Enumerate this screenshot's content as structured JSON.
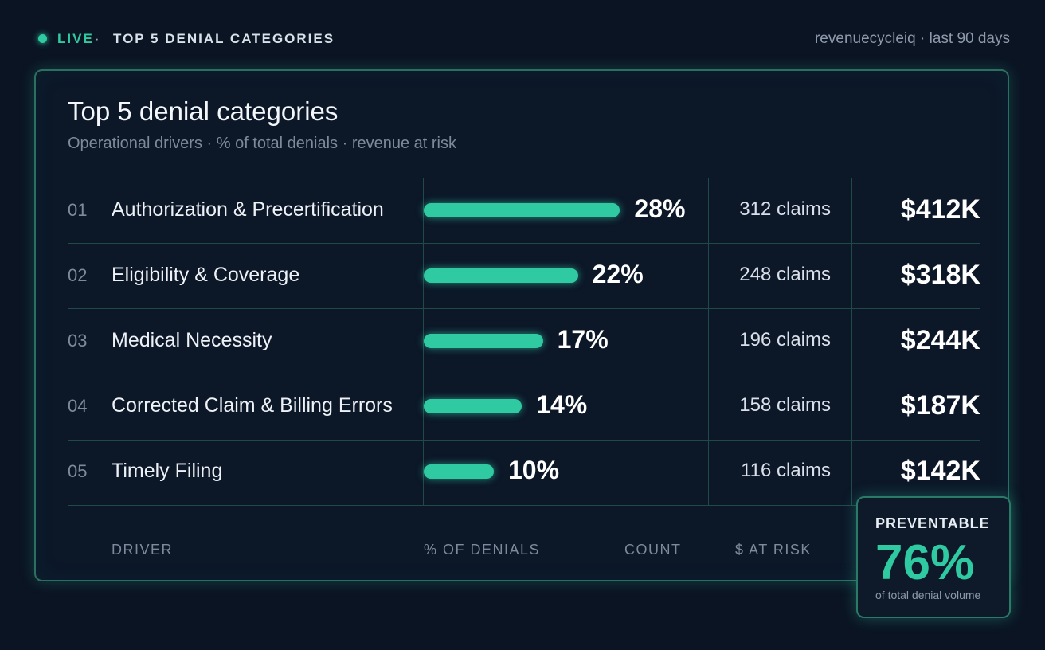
{
  "header": {
    "live_label": "LIVE",
    "separator": "·",
    "title": "TOP 5 DENIAL CATEGORIES",
    "meta": "revenuecycleiq · last 90 days"
  },
  "card": {
    "title": "Top 5 denial categories",
    "subtitle": "Operational drivers · % of total denials · revenue at risk"
  },
  "columns": {
    "driver": "DRIVER",
    "pct": "% OF DENIALS",
    "count": "COUNT",
    "risk": "$ AT RISK"
  },
  "chart_data": {
    "type": "bar",
    "title": "Top 5 denial categories",
    "subtitle": "Operational drivers · % of total denials · revenue at risk",
    "categories": [
      "Authorization & Precertification",
      "Eligibility & Coverage",
      "Medical Necessity",
      "Corrected Claim & Billing Errors",
      "Timely Filing"
    ],
    "ranks": [
      "01",
      "02",
      "03",
      "04",
      "05"
    ],
    "values": [
      28,
      22,
      17,
      14,
      10
    ],
    "pct_labels": [
      "28%",
      "22%",
      "17%",
      "14%",
      "10%"
    ],
    "counts": [
      "312 claims",
      "248 claims",
      "196 claims",
      "158 claims",
      "116 claims"
    ],
    "at_risk": [
      "$412K",
      "$318K",
      "$244K",
      "$187K",
      "$142K"
    ],
    "bar_color": "#2fc9a2"
  },
  "badge": {
    "label": "PREVENTABLE",
    "value": "76%",
    "sub": "of total denial volume"
  },
  "colors": {
    "accent": "#2fc9a2",
    "background": "#0b1423",
    "border": "#2a6f60"
  }
}
